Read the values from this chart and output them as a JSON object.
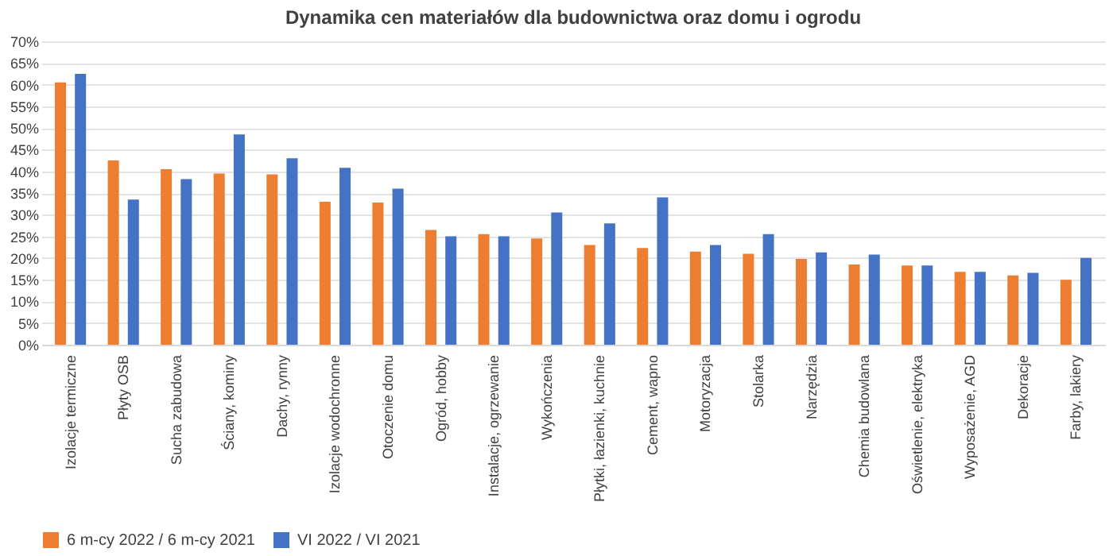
{
  "chart_data": {
    "type": "bar",
    "title": "Dynamika cen materiałów dla budownictwa oraz domu i ogrodu",
    "categories": [
      "Izolacje termiczne",
      "Płyty OSB",
      "Sucha zabudowa",
      "Ściany, kominy",
      "Dachy, rynny",
      "Izolacje wodochronne",
      "Otoczenie domu",
      "Ogród, hobby",
      "Instalacje, ogrzewanie",
      "Wykończenia",
      "Płytki, łazienki, kuchnie",
      "Cement, wapno",
      "Motoryzacja",
      "Stolarka",
      "Narzędzia",
      "Chemia budowlana",
      "Oświetlenie, elektryka",
      "Wyposażenie, AGD",
      "Dekoracje",
      "Farby, lakiery"
    ],
    "series": [
      {
        "name": "6 m-cy 2022 / 6 m-cy 2021",
        "color": "#ed7d31",
        "values": [
          60.5,
          42.5,
          40.5,
          39.5,
          39.3,
          33,
          32.8,
          26.5,
          25.5,
          24.5,
          23,
          22.3,
          21.5,
          21,
          19.8,
          18.5,
          18.3,
          16.8,
          16,
          15
        ]
      },
      {
        "name": "VI 2022 / VI 2021",
        "color": "#4472c4",
        "values": [
          62.5,
          33.5,
          38.2,
          48.5,
          43,
          40.8,
          36,
          25,
          25,
          30.5,
          28,
          34,
          23,
          25.5,
          21.3,
          20.8,
          18.3,
          16.8,
          16.6,
          20
        ]
      }
    ],
    "ylim": [
      0,
      70
    ],
    "yticks": [
      {
        "value": 0,
        "label": "0%"
      },
      {
        "value": 5,
        "label": "5%"
      },
      {
        "value": 10,
        "label": "10%"
      },
      {
        "value": 15,
        "label": "15%"
      },
      {
        "value": 20,
        "label": "20%"
      },
      {
        "value": 25,
        "label": "25%"
      },
      {
        "value": 30,
        "label": "30%"
      },
      {
        "value": 35,
        "label": "35%"
      },
      {
        "value": 40,
        "label": "40%"
      },
      {
        "value": 45,
        "label": "45%"
      },
      {
        "value": 50,
        "label": "50%"
      },
      {
        "value": 55,
        "label": "55%"
      },
      {
        "value": 60,
        "label": "60%"
      },
      {
        "value": 65,
        "label": "65%"
      },
      {
        "value": 70,
        "label": "70%"
      }
    ],
    "grid": "y",
    "legend": "bottom"
  }
}
